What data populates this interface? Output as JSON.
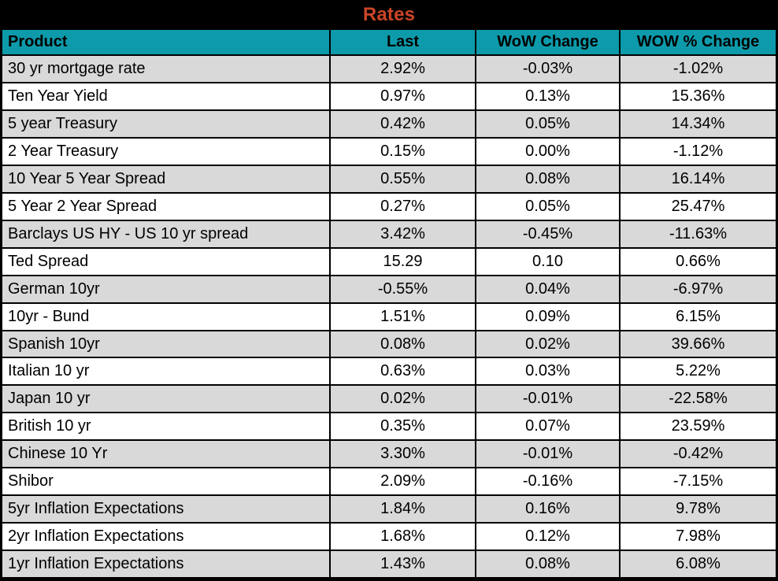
{
  "title": "Rates",
  "colors": {
    "title_bg": "#000000",
    "title_text": "#cb4527",
    "header_bg": "#0d9bab",
    "header_text": "#000000",
    "row_bg": "#ffffff",
    "row_alt_bg": "#d9d9d9",
    "border": "#000000"
  },
  "table": {
    "columns": [
      "Product",
      "Last",
      "WoW Change",
      "WOW % Change"
    ],
    "rows": [
      [
        "30 yr mortgage rate",
        "2.92%",
        "-0.03%",
        "-1.02%"
      ],
      [
        "Ten Year Yield",
        "0.97%",
        "0.13%",
        "15.36%"
      ],
      [
        "5 year Treasury",
        "0.42%",
        "0.05%",
        "14.34%"
      ],
      [
        "2 Year Treasury",
        "0.15%",
        "0.00%",
        "-1.12%"
      ],
      [
        "10 Year 5 Year Spread",
        "0.55%",
        "0.08%",
        "16.14%"
      ],
      [
        "5 Year 2 Year Spread",
        "0.27%",
        "0.05%",
        "25.47%"
      ],
      [
        "Barclays US HY - US 10 yr spread",
        "3.42%",
        "-0.45%",
        "-11.63%"
      ],
      [
        "Ted Spread",
        "15.29",
        "0.10",
        "0.66%"
      ],
      [
        "German 10yr",
        "-0.55%",
        "0.04%",
        "-6.97%"
      ],
      [
        "10yr - Bund",
        "1.51%",
        "0.09%",
        "6.15%"
      ],
      [
        "Spanish 10yr",
        "0.08%",
        "0.02%",
        "39.66%"
      ],
      [
        "Italian 10 yr",
        "0.63%",
        "0.03%",
        "5.22%"
      ],
      [
        "Japan 10 yr",
        "0.02%",
        "-0.01%",
        "-22.58%"
      ],
      [
        "British 10 yr",
        "0.35%",
        "0.07%",
        "23.59%"
      ],
      [
        "Chinese 10 Yr",
        "3.30%",
        "-0.01%",
        "-0.42%"
      ],
      [
        "Shibor",
        "2.09%",
        "-0.16%",
        "-7.15%"
      ],
      [
        "5yr Inflation Expectations",
        "1.84%",
        "0.16%",
        "9.78%"
      ],
      [
        "2yr Inflation Expectations",
        "1.68%",
        "0.12%",
        "7.98%"
      ],
      [
        "1yr Inflation Expectations",
        "1.43%",
        "0.08%",
        "6.08%"
      ]
    ]
  },
  "chart_data": {
    "type": "table",
    "title": "Rates",
    "columns": [
      "Product",
      "Last",
      "WoW Change",
      "WOW % Change"
    ],
    "rows": [
      {
        "product": "30 yr mortgage rate",
        "last": "2.92%",
        "wow_change": "-0.03%",
        "wow_pct_change": "-1.02%"
      },
      {
        "product": "Ten Year Yield",
        "last": "0.97%",
        "wow_change": "0.13%",
        "wow_pct_change": "15.36%"
      },
      {
        "product": "5 year Treasury",
        "last": "0.42%",
        "wow_change": "0.05%",
        "wow_pct_change": "14.34%"
      },
      {
        "product": "2 Year Treasury",
        "last": "0.15%",
        "wow_change": "0.00%",
        "wow_pct_change": "-1.12%"
      },
      {
        "product": "10 Year 5 Year Spread",
        "last": "0.55%",
        "wow_change": "0.08%",
        "wow_pct_change": "16.14%"
      },
      {
        "product": "5 Year 2 Year Spread",
        "last": "0.27%",
        "wow_change": "0.05%",
        "wow_pct_change": "25.47%"
      },
      {
        "product": "Barclays US HY - US 10 yr spread",
        "last": "3.42%",
        "wow_change": "-0.45%",
        "wow_pct_change": "-11.63%"
      },
      {
        "product": "Ted Spread",
        "last": "15.29",
        "wow_change": "0.10",
        "wow_pct_change": "0.66%"
      },
      {
        "product": "German 10yr",
        "last": "-0.55%",
        "wow_change": "0.04%",
        "wow_pct_change": "-6.97%"
      },
      {
        "product": "10yr - Bund",
        "last": "1.51%",
        "wow_change": "0.09%",
        "wow_pct_change": "6.15%"
      },
      {
        "product": "Spanish 10yr",
        "last": "0.08%",
        "wow_change": "0.02%",
        "wow_pct_change": "39.66%"
      },
      {
        "product": "Italian 10 yr",
        "last": "0.63%",
        "wow_change": "0.03%",
        "wow_pct_change": "5.22%"
      },
      {
        "product": "Japan 10 yr",
        "last": "0.02%",
        "wow_change": "-0.01%",
        "wow_pct_change": "-22.58%"
      },
      {
        "product": "British 10 yr",
        "last": "0.35%",
        "wow_change": "0.07%",
        "wow_pct_change": "23.59%"
      },
      {
        "product": "Chinese 10 Yr",
        "last": "3.30%",
        "wow_change": "-0.01%",
        "wow_pct_change": "-0.42%"
      },
      {
        "product": "Shibor",
        "last": "2.09%",
        "wow_change": "-0.16%",
        "wow_pct_change": "-7.15%"
      },
      {
        "product": "5yr Inflation Expectations",
        "last": "1.84%",
        "wow_change": "0.16%",
        "wow_pct_change": "9.78%"
      },
      {
        "product": "2yr Inflation Expectations",
        "last": "1.68%",
        "wow_change": "0.12%",
        "wow_pct_change": "7.98%"
      },
      {
        "product": "1yr Inflation Expectations",
        "last": "1.43%",
        "wow_change": "0.08%",
        "wow_pct_change": "6.08%"
      }
    ]
  }
}
